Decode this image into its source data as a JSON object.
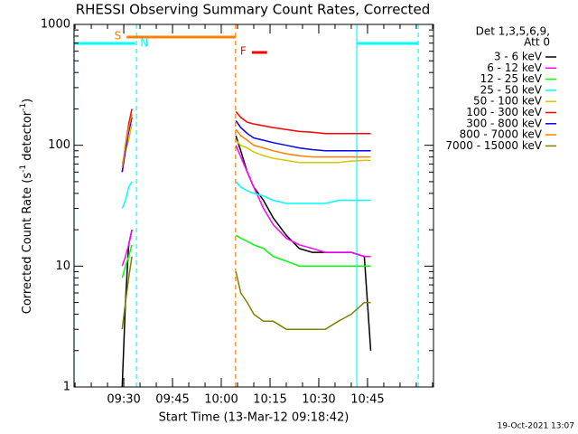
{
  "chart_data": {
    "type": "line",
    "title": "RHESSI Observing Summary Count Rates, Corrected",
    "x_label": "Start Time (13-Mar-12 09:18:42)",
    "y_label": [
      "Corrected Count Rate (s",
      "-1",
      " detector",
      "-1",
      ")"
    ],
    "legend_title": [
      "Det 1,3,5,6,9,",
      "Att 0"
    ],
    "footer": "19-Oct-2021 13:07",
    "log_scale_y": true,
    "xlim": [
      554.7,
      665.3
    ],
    "xticks": [
      {
        "value": 570,
        "label": "09:30"
      },
      {
        "value": 585,
        "label": "09:45"
      },
      {
        "value": 600,
        "label": "10:00"
      },
      {
        "value": 615,
        "label": "10:15"
      },
      {
        "value": 630,
        "label": "10:30"
      },
      {
        "value": 645,
        "label": "10:45"
      }
    ],
    "ylim": [
      1,
      1000
    ],
    "yticks": [
      1,
      10,
      100,
      1000
    ],
    "x": [
      569.5,
      570.5,
      571.5,
      572.5,
      588,
      604.5,
      606,
      608,
      610,
      613,
      616,
      620,
      624,
      628,
      632,
      636,
      640,
      644,
      646
    ],
    "series": [
      {
        "name": "3 - 6 keV",
        "color": "#000000",
        "values": [
          1,
          5,
          15,
          20,
          null,
          120,
          90,
          60,
          45,
          35,
          25,
          18,
          14,
          13,
          13,
          13,
          13,
          12,
          2
        ]
      },
      {
        "name": "6 - 12 keV",
        "color": "#ff00ff",
        "values": [
          10,
          12,
          15,
          20,
          null,
          100,
          80,
          60,
          45,
          30,
          22,
          17,
          15,
          14,
          13,
          13,
          13,
          12,
          12
        ]
      },
      {
        "name": "12 - 25 keV",
        "color": "#00ff00",
        "values": [
          8,
          10,
          12,
          15,
          null,
          18,
          17,
          16,
          15,
          14,
          12,
          11,
          10,
          10,
          10,
          10,
          10,
          10,
          10
        ]
      },
      {
        "name": "25 - 50 keV",
        "color": "#00ffff",
        "values": [
          30,
          35,
          45,
          50,
          null,
          50,
          45,
          42,
          40,
          38,
          35,
          33,
          33,
          33,
          33,
          35,
          35,
          35,
          35
        ]
      },
      {
        "name": "50 - 100 keV",
        "color": "#d4c800",
        "values": [
          70,
          90,
          110,
          150,
          null,
          110,
          100,
          95,
          88,
          82,
          78,
          75,
          72,
          72,
          72,
          72,
          74,
          75,
          75
        ]
      },
      {
        "name": "100 - 300 keV",
        "color": "#ff0000",
        "values": [
          60,
          100,
          150,
          200,
          null,
          190,
          170,
          155,
          150,
          145,
          140,
          135,
          130,
          128,
          125,
          125,
          125,
          125,
          125
        ]
      },
      {
        "name": "300 - 800 keV",
        "color": "#0000ff",
        "values": [
          60,
          90,
          130,
          170,
          null,
          160,
          140,
          125,
          115,
          110,
          105,
          100,
          95,
          92,
          90,
          90,
          90,
          90,
          90
        ]
      },
      {
        "name": "800 - 7000 keV",
        "color": "#ff8000",
        "values": [
          65,
          100,
          140,
          180,
          null,
          135,
          120,
          110,
          100,
          95,
          90,
          85,
          82,
          80,
          80,
          80,
          80,
          80,
          80
        ]
      },
      {
        "name": "7000 - 15000 keV",
        "color": "#808000",
        "values": [
          3,
          5,
          8,
          12,
          null,
          9,
          6,
          5,
          4,
          3.5,
          3.5,
          3,
          3,
          3,
          3,
          3.5,
          4,
          5,
          5
        ]
      }
    ],
    "vlines": [
      {
        "x": 554.7,
        "color": "#00ffff",
        "dashed": false
      },
      {
        "x": 573.9,
        "color": "#00ffff",
        "dashed": true
      },
      {
        "x": 604.4,
        "color": "#ff8000",
        "dashed": true
      },
      {
        "x": 641.7,
        "color": "#00ffff",
        "dashed": false
      },
      {
        "x": 660.6,
        "color": "#00ffff",
        "dashed": true
      }
    ],
    "flags": [
      {
        "label": "S",
        "color": "#ff8000",
        "x": [
          570.9,
          604.4
        ]
      },
      {
        "label": "N",
        "color": "#00ffff",
        "x": [
          554.7,
          573.4
        ]
      },
      {
        "label": "F",
        "color": "#ff0000",
        "x": [
          609.4,
          614.1
        ]
      },
      {
        "color": "#00ffff",
        "x": [
          641.7,
          660.6
        ]
      }
    ]
  }
}
